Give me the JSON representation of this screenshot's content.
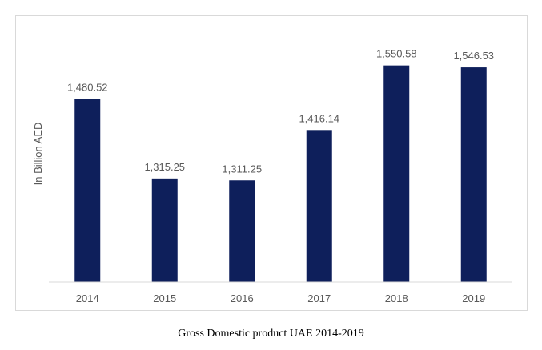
{
  "caption": "Gross Domestic product UAE 2014-2019",
  "colors": {
    "bar": "#0e1f5b",
    "axis": "#d9d9d9",
    "text": "#595959"
  },
  "chart_data": {
    "type": "bar",
    "title": "",
    "xlabel": "",
    "ylabel": "In Billion AED",
    "categories": [
      "2014",
      "2015",
      "2016",
      "2017",
      "2018",
      "2019"
    ],
    "values": [
      1480.52,
      1315.25,
      1311.25,
      1416.14,
      1550.58,
      1546.53
    ],
    "data_labels": [
      "1,480.52",
      "1,315.25",
      "1,311.25",
      "1,416.14",
      "1,550.58",
      "1,546.53"
    ],
    "ylim": [
      1100,
      1600
    ],
    "grid": false,
    "legend": "none"
  }
}
